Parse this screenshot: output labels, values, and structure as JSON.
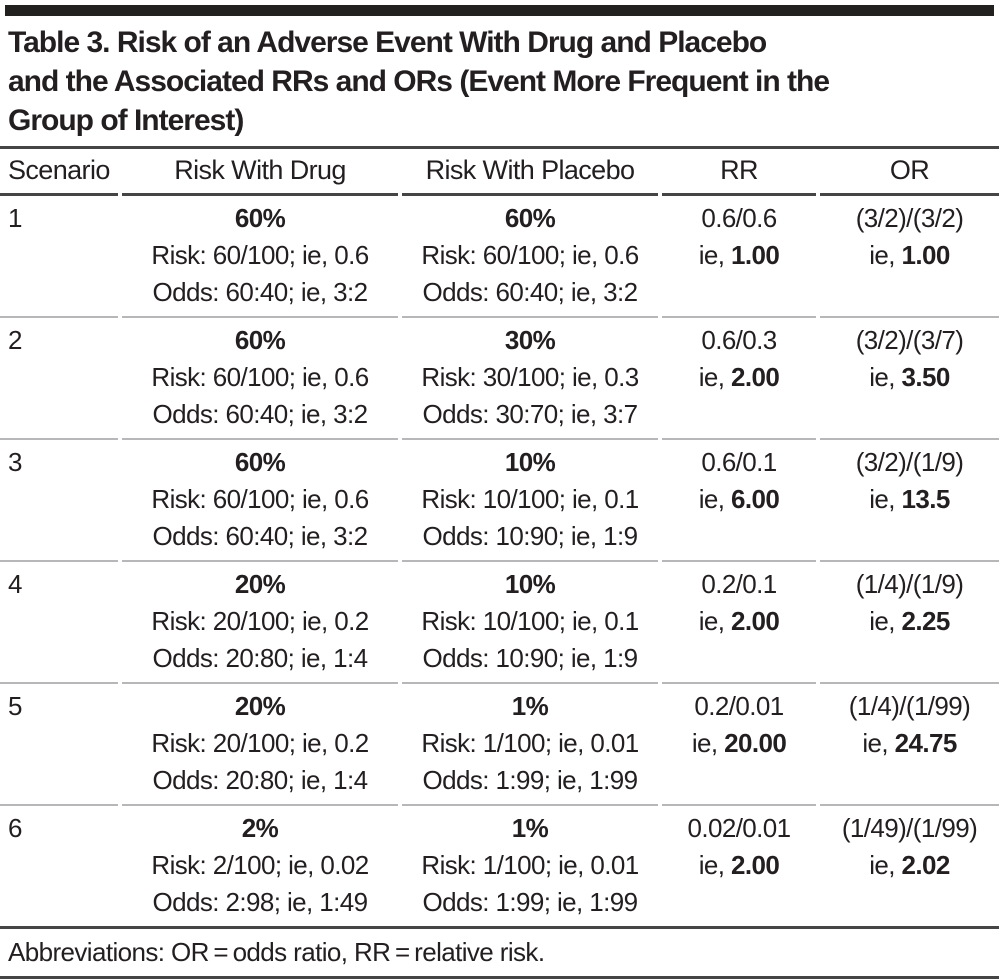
{
  "title": {
    "lines": [
      "Table 3. Risk of an Adverse Event With Drug and Placebo",
      "and the Associated RRs and ORs (Event More Frequent in the",
      "Group of Interest)"
    ]
  },
  "table": {
    "columns": [
      "Scenario",
      "Risk With Drug",
      "Risk With Placebo",
      "RR",
      "OR"
    ],
    "rows": [
      {
        "scenario": "1",
        "drug": {
          "pct": "60%",
          "risk": "Risk: 60/100; ie, 0.6",
          "odds": "Odds: 60:40; ie, 3:2"
        },
        "placebo": {
          "pct": "60%",
          "risk": "Risk: 60/100; ie, 0.6",
          "odds": "Odds: 60:40; ie, 3:2"
        },
        "rr": {
          "formula": "0.6/0.6",
          "ie": "ie, ",
          "value": "1.00"
        },
        "or": {
          "formula": "(3/2)/(3/2)",
          "ie": "ie, ",
          "value": "1.00"
        }
      },
      {
        "scenario": "2",
        "drug": {
          "pct": "60%",
          "risk": "Risk: 60/100; ie, 0.6",
          "odds": "Odds: 60:40; ie, 3:2"
        },
        "placebo": {
          "pct": "30%",
          "risk": "Risk: 30/100; ie, 0.3",
          "odds": "Odds: 30:70; ie, 3:7"
        },
        "rr": {
          "formula": "0.6/0.3",
          "ie": "ie, ",
          "value": "2.00"
        },
        "or": {
          "formula": "(3/2)/(3/7)",
          "ie": "ie, ",
          "value": "3.50"
        }
      },
      {
        "scenario": "3",
        "drug": {
          "pct": "60%",
          "risk": "Risk: 60/100; ie, 0.6",
          "odds": "Odds: 60:40; ie, 3:2"
        },
        "placebo": {
          "pct": "10%",
          "risk": "Risk: 10/100; ie, 0.1",
          "odds": "Odds: 10:90; ie, 1:9"
        },
        "rr": {
          "formula": "0.6/0.1",
          "ie": "ie, ",
          "value": "6.00"
        },
        "or": {
          "formula": "(3/2)/(1/9)",
          "ie": "ie, ",
          "value": "13.5"
        }
      },
      {
        "scenario": "4",
        "drug": {
          "pct": "20%",
          "risk": "Risk: 20/100; ie, 0.2",
          "odds": "Odds: 20:80; ie, 1:4"
        },
        "placebo": {
          "pct": "10%",
          "risk": "Risk: 10/100; ie, 0.1",
          "odds": "Odds: 10:90; ie, 1:9"
        },
        "rr": {
          "formula": "0.2/0.1",
          "ie": "ie, ",
          "value": "2.00"
        },
        "or": {
          "formula": "(1/4)/(1/9)",
          "ie": "ie, ",
          "value": "2.25"
        }
      },
      {
        "scenario": "5",
        "drug": {
          "pct": "20%",
          "risk": "Risk: 20/100; ie, 0.2",
          "odds": "Odds: 20:80; ie, 1:4"
        },
        "placebo": {
          "pct": "1%",
          "risk": "Risk: 1/100; ie, 0.01",
          "odds": "Odds: 1:99; ie, 1:99"
        },
        "rr": {
          "formula": "0.2/0.01",
          "ie": "ie, ",
          "value": "20.00"
        },
        "or": {
          "formula": "(1/4)/(1/99)",
          "ie": "ie, ",
          "value": "24.75"
        }
      },
      {
        "scenario": "6",
        "drug": {
          "pct": "2%",
          "risk": "Risk: 2/100; ie, 0.02",
          "odds": "Odds: 2:98; ie, 1:49"
        },
        "placebo": {
          "pct": "1%",
          "risk": "Risk: 1/100; ie, 0.01",
          "odds": "Odds: 1:99; ie, 1:99"
        },
        "rr": {
          "formula": "0.02/0.01",
          "ie": "ie, ",
          "value": "2.00"
        },
        "or": {
          "formula": "(1/49)/(1/99)",
          "ie": "ie, ",
          "value": "2.02"
        }
      }
    ]
  },
  "footnote": {
    "text": "Abbreviations: OR = odds ratio, RR = relative risk."
  },
  "colors": {
    "text": "#231f20",
    "top_bar": "#222120",
    "rule_dark": "#454546",
    "rule_light": "#b7b7b9"
  }
}
